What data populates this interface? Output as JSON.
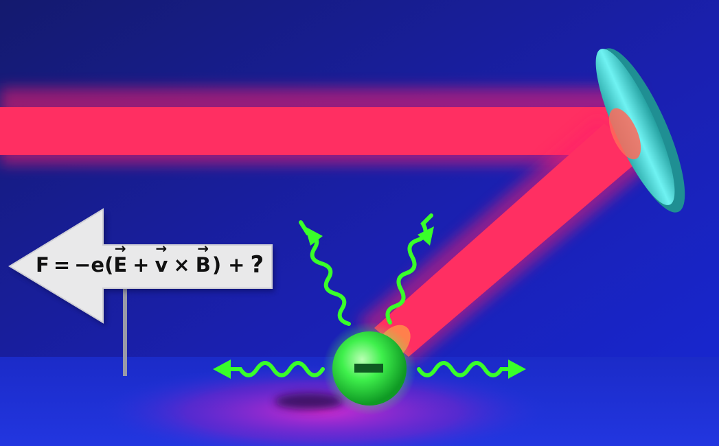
{
  "illustration": {
    "formula": {
      "F": "F",
      "equals": "=",
      "neg_e": "−e(",
      "E": "E",
      "plus1": "+",
      "v": "v",
      "times": "×",
      "B": "B",
      "close_plus": ") +",
      "question": "?"
    },
    "particle_charge": "−",
    "colors": {
      "background_top": "#10146a",
      "background_bottom": "#1a24c8",
      "laser": "#ff2a5c",
      "mirror": "#3fd6d6",
      "electron": "#2ee84a",
      "wave_arrows": "#33ff33",
      "sign": "#e8e8e8"
    },
    "icons": [
      "laser-beam",
      "mirror",
      "electron",
      "emission-wave-arrow",
      "direction-sign"
    ]
  }
}
